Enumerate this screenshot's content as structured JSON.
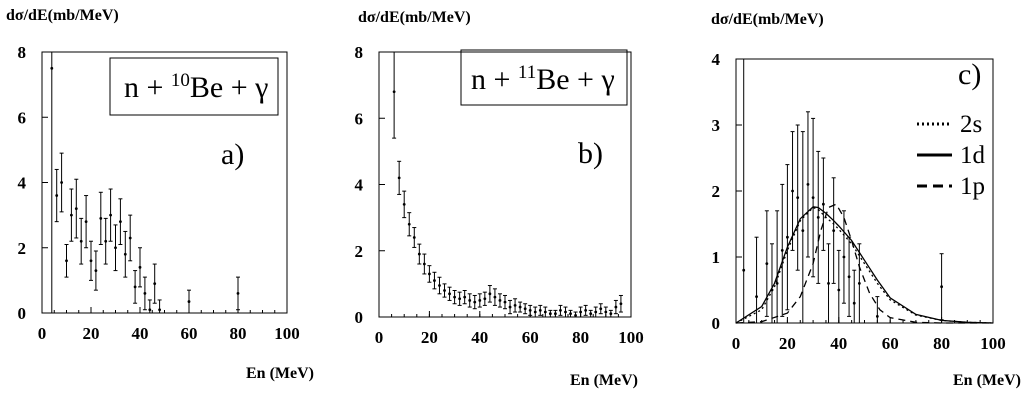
{
  "chart_data": [
    {
      "type": "scatter",
      "panel": "a",
      "ylabel": "dσ/dE(mb/MeV)",
      "xlabel": "En (MeV)",
      "xlim": [
        0,
        100
      ],
      "ylim": [
        0,
        8
      ],
      "xticks": [
        "0",
        "20",
        "40",
        "60",
        "80",
        "100"
      ],
      "yticks": [
        "0",
        "2",
        "4",
        "6",
        "8"
      ],
      "reaction": {
        "pre": "n + ",
        "mass": "10",
        "post": "Be + γ"
      },
      "panel_label": "a)",
      "points": [
        {
          "x": 4,
          "y": 7.5,
          "err": 7.8
        },
        {
          "x": 6,
          "y": 3.6,
          "err": 0.8
        },
        {
          "x": 8,
          "y": 4.0,
          "err": 0.9
        },
        {
          "x": 10,
          "y": 1.6,
          "err": 0.5
        },
        {
          "x": 12,
          "y": 3.0,
          "err": 0.8
        },
        {
          "x": 14,
          "y": 3.2,
          "err": 0.9
        },
        {
          "x": 16,
          "y": 2.2,
          "err": 0.7
        },
        {
          "x": 18,
          "y": 2.8,
          "err": 0.8
        },
        {
          "x": 20,
          "y": 1.6,
          "err": 0.6
        },
        {
          "x": 22,
          "y": 1.3,
          "err": 0.6
        },
        {
          "x": 24,
          "y": 2.9,
          "err": 0.8
        },
        {
          "x": 26,
          "y": 2.2,
          "err": 0.7
        },
        {
          "x": 28,
          "y": 3.0,
          "err": 0.8
        },
        {
          "x": 30,
          "y": 2.0,
          "err": 0.7
        },
        {
          "x": 32,
          "y": 2.8,
          "err": 0.7
        },
        {
          "x": 34,
          "y": 1.8,
          "err": 0.7
        },
        {
          "x": 36,
          "y": 2.3,
          "err": 0.7
        },
        {
          "x": 38,
          "y": 0.8,
          "err": 0.5
        },
        {
          "x": 40,
          "y": 1.4,
          "err": 0.6
        },
        {
          "x": 42,
          "y": 0.6,
          "err": 0.5
        },
        {
          "x": 44,
          "y": 0.1,
          "err": 0.3
        },
        {
          "x": 46,
          "y": 0.9,
          "err": 0.6
        },
        {
          "x": 48,
          "y": 0.1,
          "err": 0.3
        },
        {
          "x": 60,
          "y": 0.35,
          "err": 0.35
        },
        {
          "x": 80,
          "y": 0.6,
          "err": 0.5
        }
      ]
    },
    {
      "type": "scatter",
      "panel": "b",
      "ylabel": "dσ/dE(mb/MeV)",
      "xlabel": "En (MeV)",
      "xlim": [
        0,
        100
      ],
      "ylim": [
        0,
        8
      ],
      "xticks": [
        "0",
        "20",
        "40",
        "60",
        "80",
        "100"
      ],
      "yticks": [
        "0",
        "2",
        "4",
        "6",
        "8"
      ],
      "reaction": {
        "pre": "n + ",
        "mass": "11",
        "post": "Be + γ"
      },
      "panel_label": "b)",
      "points": [
        {
          "x": 6,
          "y": 6.8,
          "err": 1.4
        },
        {
          "x": 8,
          "y": 4.2,
          "err": 0.5
        },
        {
          "x": 10,
          "y": 3.4,
          "err": 0.4
        },
        {
          "x": 12,
          "y": 2.8,
          "err": 0.35
        },
        {
          "x": 14,
          "y": 2.4,
          "err": 0.3
        },
        {
          "x": 16,
          "y": 1.9,
          "err": 0.3
        },
        {
          "x": 18,
          "y": 1.6,
          "err": 0.3
        },
        {
          "x": 20,
          "y": 1.3,
          "err": 0.25
        },
        {
          "x": 22,
          "y": 1.1,
          "err": 0.25
        },
        {
          "x": 24,
          "y": 0.95,
          "err": 0.25
        },
        {
          "x": 26,
          "y": 0.8,
          "err": 0.2
        },
        {
          "x": 28,
          "y": 0.7,
          "err": 0.2
        },
        {
          "x": 30,
          "y": 0.6,
          "err": 0.2
        },
        {
          "x": 32,
          "y": 0.55,
          "err": 0.2
        },
        {
          "x": 34,
          "y": 0.6,
          "err": 0.2
        },
        {
          "x": 36,
          "y": 0.5,
          "err": 0.2
        },
        {
          "x": 38,
          "y": 0.45,
          "err": 0.2
        },
        {
          "x": 40,
          "y": 0.5,
          "err": 0.2
        },
        {
          "x": 42,
          "y": 0.55,
          "err": 0.2
        },
        {
          "x": 44,
          "y": 0.7,
          "err": 0.25
        },
        {
          "x": 46,
          "y": 0.6,
          "err": 0.25
        },
        {
          "x": 48,
          "y": 0.5,
          "err": 0.2
        },
        {
          "x": 50,
          "y": 0.45,
          "err": 0.2
        },
        {
          "x": 52,
          "y": 0.3,
          "err": 0.2
        },
        {
          "x": 54,
          "y": 0.35,
          "err": 0.2
        },
        {
          "x": 56,
          "y": 0.3,
          "err": 0.15
        },
        {
          "x": 58,
          "y": 0.25,
          "err": 0.15
        },
        {
          "x": 60,
          "y": 0.2,
          "err": 0.15
        },
        {
          "x": 62,
          "y": 0.15,
          "err": 0.15
        },
        {
          "x": 64,
          "y": 0.2,
          "err": 0.15
        },
        {
          "x": 66,
          "y": 0.15,
          "err": 0.15
        },
        {
          "x": 68,
          "y": 0.1,
          "err": 0.1
        },
        {
          "x": 70,
          "y": 0.1,
          "err": 0.1
        },
        {
          "x": 72,
          "y": 0.2,
          "err": 0.15
        },
        {
          "x": 74,
          "y": 0.15,
          "err": 0.15
        },
        {
          "x": 76,
          "y": 0.1,
          "err": 0.1
        },
        {
          "x": 78,
          "y": 0.05,
          "err": 0.1
        },
        {
          "x": 80,
          "y": 0.15,
          "err": 0.15
        },
        {
          "x": 82,
          "y": 0.2,
          "err": 0.15
        },
        {
          "x": 84,
          "y": 0.1,
          "err": 0.1
        },
        {
          "x": 86,
          "y": 0.15,
          "err": 0.15
        },
        {
          "x": 88,
          "y": 0.25,
          "err": 0.15
        },
        {
          "x": 90,
          "y": 0.15,
          "err": 0.15
        },
        {
          "x": 92,
          "y": 0.1,
          "err": 0.1
        },
        {
          "x": 94,
          "y": 0.3,
          "err": 0.2
        },
        {
          "x": 96,
          "y": 0.4,
          "err": 0.25
        }
      ]
    },
    {
      "type": "line",
      "panel": "c",
      "ylabel": "dσ/dE(mb/MeV)",
      "xlabel": "En (MeV)",
      "xlim": [
        0,
        100
      ],
      "ylim": [
        0,
        4
      ],
      "xticks": [
        "0",
        "20",
        "40",
        "60",
        "80",
        "100"
      ],
      "yticks": [
        "0",
        "1",
        "2",
        "3",
        "4"
      ],
      "panel_label": "c)",
      "legend": [
        {
          "label": "2s",
          "dash": "dotted"
        },
        {
          "label": "1d",
          "dash": "solid"
        },
        {
          "label": "1p",
          "dash": "dashed"
        }
      ],
      "points": [
        {
          "x": 3,
          "y": 0.8,
          "err": 3.4
        },
        {
          "x": 8,
          "y": 0.4,
          "err": 0.9
        },
        {
          "x": 12,
          "y": 0.9,
          "err": 0.8
        },
        {
          "x": 14,
          "y": 0.5,
          "err": 0.7
        },
        {
          "x": 16,
          "y": 0.6,
          "err": 1.1
        },
        {
          "x": 18,
          "y": 1.1,
          "err": 1.0
        },
        {
          "x": 20,
          "y": 1.3,
          "err": 1.1
        },
        {
          "x": 22,
          "y": 2.0,
          "err": 0.9
        },
        {
          "x": 24,
          "y": 1.9,
          "err": 1.1
        },
        {
          "x": 26,
          "y": 1.4,
          "err": 1.5
        },
        {
          "x": 28,
          "y": 2.1,
          "err": 1.1
        },
        {
          "x": 30,
          "y": 1.9,
          "err": 1.2
        },
        {
          "x": 32,
          "y": 1.6,
          "err": 1.0
        },
        {
          "x": 34,
          "y": 1.8,
          "err": 0.7
        },
        {
          "x": 36,
          "y": 0.6,
          "err": 0.6
        },
        {
          "x": 38,
          "y": 1.4,
          "err": 0.8
        },
        {
          "x": 40,
          "y": 0.5,
          "err": 0.6
        },
        {
          "x": 42,
          "y": 1.0,
          "err": 0.7
        },
        {
          "x": 44,
          "y": 0.7,
          "err": 0.6
        },
        {
          "x": 46,
          "y": 0.3,
          "err": 0.5
        },
        {
          "x": 48,
          "y": 0.6,
          "err": 0.6
        },
        {
          "x": 55,
          "y": 0.1,
          "err": 0.3
        },
        {
          "x": 80,
          "y": 0.55,
          "err": 0.5
        }
      ],
      "series": [
        {
          "name": "2s",
          "dash": "dotted",
          "x": [
            0,
            10,
            15,
            20,
            25,
            30,
            32,
            35,
            38,
            40,
            45,
            50,
            55,
            60,
            70,
            80,
            90,
            100
          ],
          "y": [
            0,
            0.2,
            0.55,
            1.1,
            1.55,
            1.75,
            1.72,
            1.6,
            1.5,
            1.42,
            1.2,
            0.9,
            0.6,
            0.35,
            0.12,
            0.04,
            0.01,
            0
          ]
        },
        {
          "name": "1d",
          "dash": "solid",
          "x": [
            0,
            10,
            15,
            20,
            25,
            30,
            32,
            35,
            38,
            40,
            45,
            50,
            55,
            60,
            70,
            80,
            90,
            100
          ],
          "y": [
            0,
            0.25,
            0.6,
            1.15,
            1.58,
            1.76,
            1.75,
            1.66,
            1.55,
            1.47,
            1.25,
            0.95,
            0.65,
            0.38,
            0.13,
            0.04,
            0.01,
            0
          ]
        },
        {
          "name": "1p",
          "dash": "dashed",
          "x": [
            0,
            10,
            20,
            25,
            30,
            33,
            36,
            39,
            42,
            45,
            48,
            52,
            56,
            60,
            70,
            80,
            100
          ],
          "y": [
            0,
            0.02,
            0.15,
            0.4,
            0.9,
            1.4,
            1.75,
            1.8,
            1.6,
            1.25,
            0.85,
            0.45,
            0.2,
            0.08,
            0.01,
            0,
            0
          ]
        }
      ]
    }
  ]
}
